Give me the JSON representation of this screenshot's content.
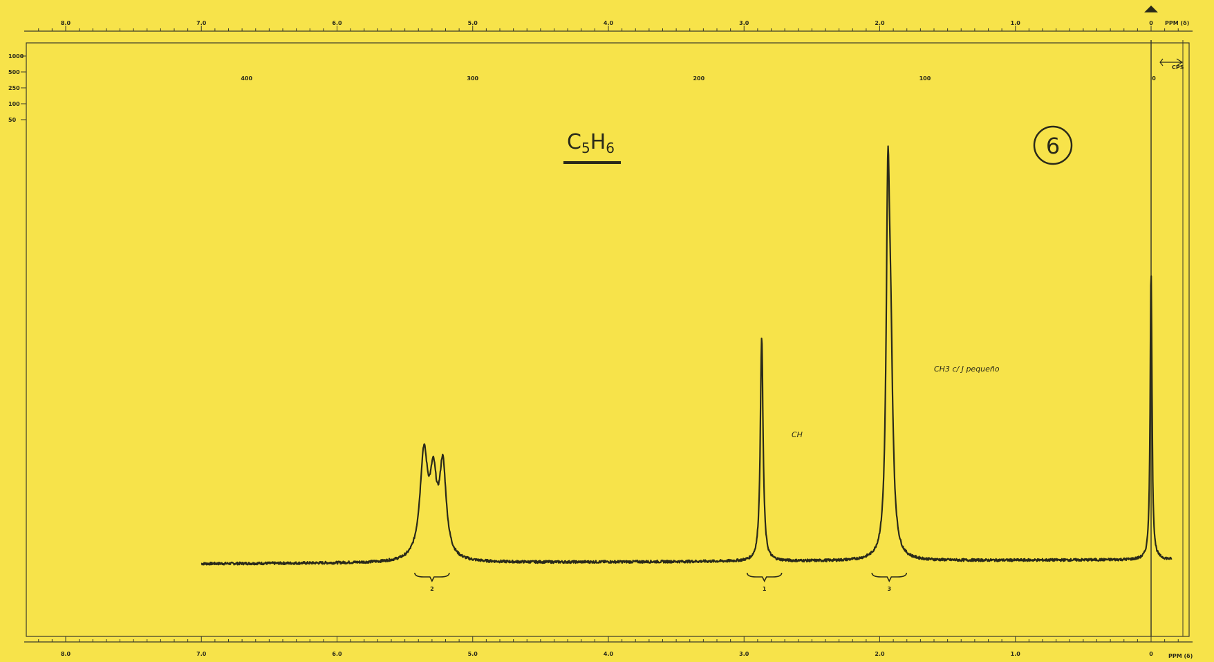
{
  "chart_data": {
    "type": "line",
    "title": "C5H6",
    "title_main": "C",
    "title_sub1": "5",
    "title_mid": "H",
    "title_sub2": "6",
    "spectrum_number": "6",
    "ppm_axis_label": "PPM (δ)",
    "cps_axis_label": "CPS",
    "ppm_ticks_top": [
      "8.0",
      "7.0",
      "6.0",
      "5.0",
      "4.0",
      "3.0",
      "2.0",
      "1.0",
      "0"
    ],
    "ppm_ticks_bottom": [
      "8.0",
      "7.0",
      "6.0",
      "5.0",
      "4.0",
      "3.0",
      "2.0",
      "1.0",
      "0"
    ],
    "cps_ticks": [
      "400",
      "300",
      "200",
      "100",
      "0"
    ],
    "sweep_scale_labels": [
      "1000",
      "500",
      "250",
      "100",
      "50"
    ],
    "xlim_ppm": [
      8.0,
      0.0
    ],
    "ylim": [
      0,
      1
    ],
    "baseline_range_ppm": [
      7.0,
      -0.15
    ],
    "peaks": [
      {
        "center": 5.36,
        "height": 0.32,
        "width": 0.035
      },
      {
        "center": 5.22,
        "height": 0.28,
        "width": 0.03
      },
      {
        "center": 5.29,
        "height": 0.22,
        "width": 0.03
      },
      {
        "center": 2.87,
        "height": 0.7,
        "width": 0.012
      },
      {
        "center": 1.94,
        "height": 1.0,
        "width": 0.015
      },
      {
        "center": 1.92,
        "height": 0.55,
        "width": 0.02
      },
      {
        "center": 0.0,
        "height": 0.9,
        "width": 0.008
      }
    ],
    "integrations": [
      {
        "ppm": 5.3,
        "value": "2"
      },
      {
        "ppm": 2.85,
        "value": "1"
      },
      {
        "ppm": 1.93,
        "value": "3"
      }
    ],
    "annotations": [
      {
        "text": "CH",
        "ppm": 2.65
      },
      {
        "text": "CH3 c/ J pequeño",
        "ppm": 1.6
      }
    ]
  }
}
